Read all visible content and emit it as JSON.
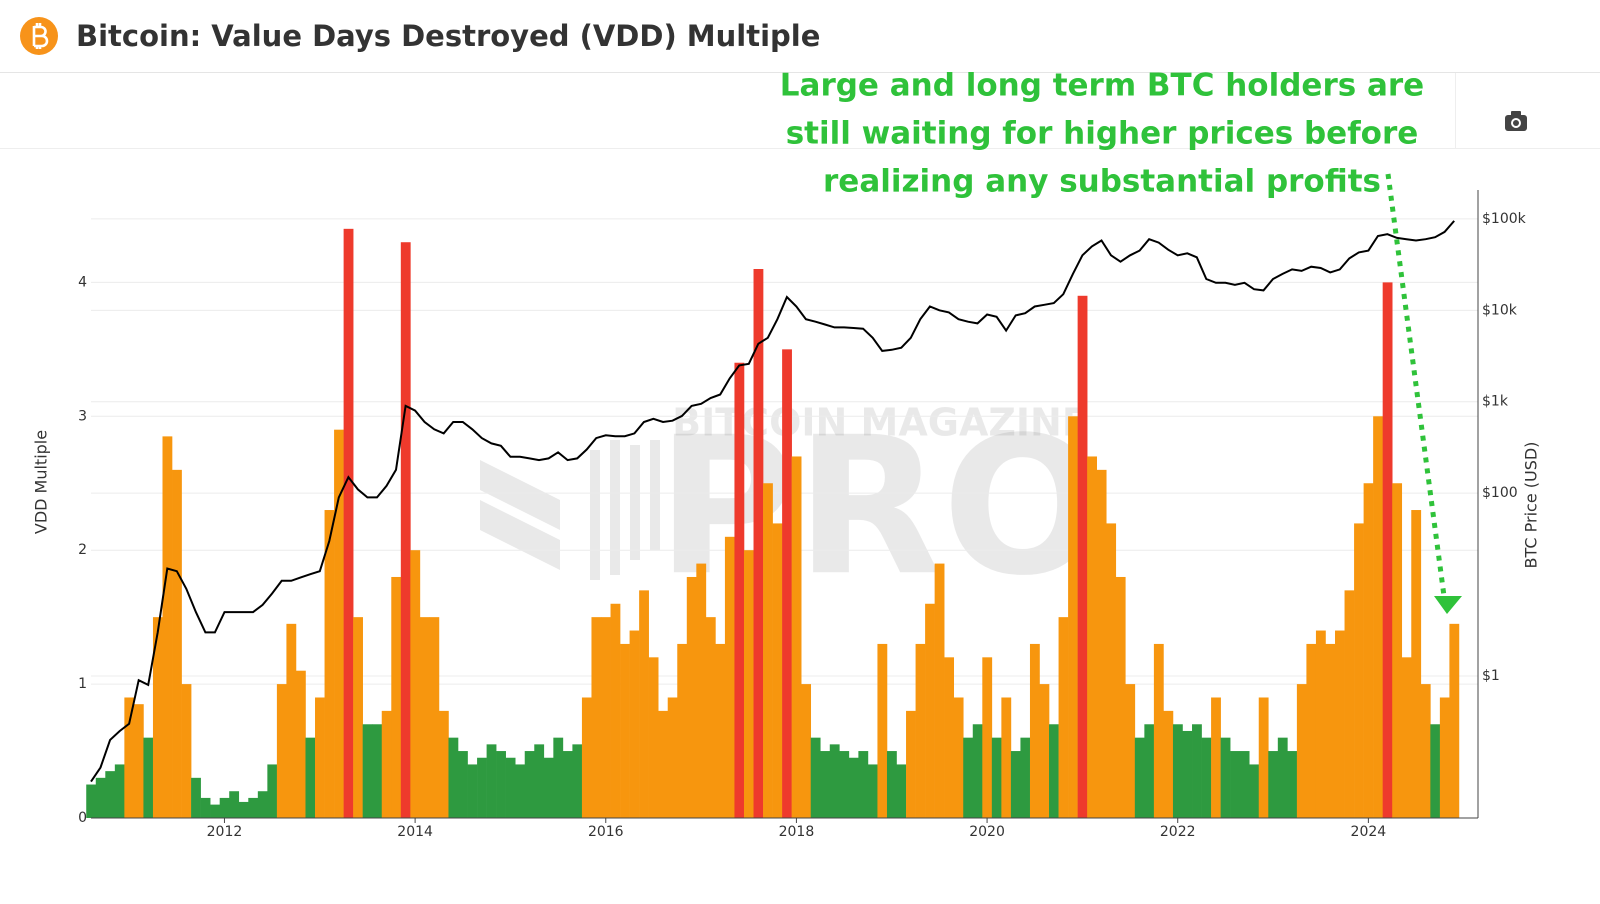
{
  "header": {
    "title": "Bitcoin: Value Days Destroyed (VDD) Multiple"
  },
  "chart_data": {
    "type": "bar-line",
    "annotation": [
      "Large and long term BTC holders are",
      "still waiting for higher prices before",
      "realizing any substantial profits"
    ],
    "watermark": [
      "BITCOIN MAGAZINE",
      "PRO"
    ],
    "ylabel": "VDD Multiple",
    "y2label": "BTC Price (USD)",
    "xlim": [
      2010.6,
      2025.15
    ],
    "xticks": [
      2012,
      2014,
      2016,
      2018,
      2020,
      2022,
      2024
    ],
    "ylim": [
      0,
      4.69
    ],
    "yticks": [
      0,
      1,
      2,
      3,
      4
    ],
    "y2lim": [
      0.028,
      207000
    ],
    "y2log": true,
    "y2ticks": [
      {
        "value": 1,
        "label": "$1"
      },
      {
        "value": 100,
        "label": "$100"
      },
      {
        "value": 1000,
        "label": "$1k"
      },
      {
        "value": 10000,
        "label": "$10k"
      },
      {
        "value": 100000,
        "label": "$100k"
      }
    ],
    "grid": true,
    "x": [
      2010.6,
      2010.7,
      2010.8,
      2010.9,
      2011.0,
      2011.1,
      2011.2,
      2011.3,
      2011.4,
      2011.5,
      2011.6,
      2011.7,
      2011.8,
      2011.9,
      2012.0,
      2012.1,
      2012.2,
      2012.3,
      2012.4,
      2012.5,
      2012.6,
      2012.7,
      2012.8,
      2012.9,
      2013.0,
      2013.1,
      2013.2,
      2013.3,
      2013.4,
      2013.5,
      2013.6,
      2013.7,
      2013.8,
      2013.9,
      2014.0,
      2014.1,
      2014.2,
      2014.3,
      2014.4,
      2014.5,
      2014.6,
      2014.7,
      2014.8,
      2014.9,
      2015.0,
      2015.1,
      2015.2,
      2015.3,
      2015.4,
      2015.5,
      2015.6,
      2015.7,
      2015.8,
      2015.9,
      2016.0,
      2016.1,
      2016.2,
      2016.3,
      2016.4,
      2016.5,
      2016.6,
      2016.7,
      2016.8,
      2016.9,
      2017.0,
      2017.1,
      2017.2,
      2017.3,
      2017.4,
      2017.5,
      2017.6,
      2017.7,
      2017.8,
      2017.9,
      2018.0,
      2018.1,
      2018.2,
      2018.3,
      2018.4,
      2018.5,
      2018.6,
      2018.7,
      2018.8,
      2018.9,
      2019.0,
      2019.1,
      2019.2,
      2019.3,
      2019.4,
      2019.5,
      2019.6,
      2019.7,
      2019.8,
      2019.9,
      2020.0,
      2020.1,
      2020.2,
      2020.3,
      2020.4,
      2020.5,
      2020.6,
      2020.7,
      2020.8,
      2020.9,
      2021.0,
      2021.1,
      2021.2,
      2021.3,
      2021.4,
      2021.5,
      2021.6,
      2021.7,
      2021.8,
      2021.9,
      2022.0,
      2022.1,
      2022.2,
      2022.3,
      2022.4,
      2022.5,
      2022.6,
      2022.7,
      2022.8,
      2022.9,
      2023.0,
      2023.1,
      2023.2,
      2023.3,
      2023.4,
      2023.5,
      2023.6,
      2023.7,
      2023.8,
      2023.9,
      2024.0,
      2024.1,
      2024.2,
      2024.3,
      2024.4,
      2024.5,
      2024.6,
      2024.7,
      2024.8,
      2024.9
    ],
    "bar_thresholds": [
      0.75,
      3.3
    ],
    "bar_colors": [
      "#2e9a40",
      "#f7960e",
      "#ee3a2c"
    ],
    "series": [
      {
        "axis": "y",
        "values": [
          0.25,
          0.3,
          0.35,
          0.4,
          0.9,
          0.85,
          0.6,
          1.5,
          2.85,
          2.6,
          1.0,
          0.3,
          0.15,
          0.1,
          0.15,
          0.2,
          0.12,
          0.15,
          0.2,
          0.4,
          1.0,
          1.45,
          1.1,
          0.6,
          0.9,
          2.3,
          2.9,
          4.4,
          1.5,
          0.7,
          0.7,
          0.8,
          1.8,
          4.3,
          2.0,
          1.5,
          1.5,
          0.8,
          0.6,
          0.5,
          0.4,
          0.45,
          0.55,
          0.5,
          0.45,
          0.4,
          0.5,
          0.55,
          0.45,
          0.6,
          0.5,
          0.55,
          0.9,
          1.5,
          1.5,
          1.6,
          1.3,
          1.4,
          1.7,
          1.2,
          0.8,
          0.9,
          1.3,
          1.8,
          1.9,
          1.5,
          1.3,
          2.1,
          3.4,
          2.0,
          4.1,
          2.5,
          2.2,
          3.5,
          2.7,
          1.0,
          0.6,
          0.5,
          0.55,
          0.5,
          0.45,
          0.5,
          0.4,
          1.3,
          0.5,
          0.4,
          0.8,
          1.3,
          1.6,
          1.9,
          1.2,
          0.9,
          0.6,
          0.7,
          1.2,
          0.6,
          0.9,
          0.5,
          0.6,
          1.3,
          1.0,
          0.7,
          1.5,
          3.0,
          3.9,
          2.7,
          2.6,
          2.2,
          1.8,
          1.0,
          0.6,
          0.7,
          1.3,
          0.8,
          0.7,
          0.65,
          0.7,
          0.6,
          0.9,
          0.6,
          0.5,
          0.5,
          0.4,
          0.9,
          0.5,
          0.6,
          0.5,
          1.0,
          1.3,
          1.4,
          1.3,
          1.4,
          1.7,
          2.2,
          2.5,
          3.0,
          4.0,
          2.5,
          1.2,
          2.3,
          1.0,
          0.7,
          0.9,
          1.45
        ]
      },
      {
        "axis": "y2",
        "color": "#000000",
        "values": [
          0.07,
          0.1,
          0.2,
          0.25,
          0.3,
          0.9,
          0.8,
          3,
          15,
          14,
          9,
          5,
          3,
          3,
          5,
          5,
          5,
          5,
          6,
          8,
          11,
          11,
          12,
          13,
          14,
          30,
          90,
          150,
          110,
          90,
          90,
          120,
          180,
          900,
          800,
          600,
          500,
          450,
          600,
          600,
          500,
          400,
          350,
          330,
          250,
          250,
          240,
          230,
          240,
          280,
          230,
          240,
          300,
          400,
          430,
          420,
          420,
          450,
          600,
          650,
          600,
          620,
          700,
          900,
          950,
          1100,
          1200,
          1800,
          2500,
          2600,
          4300,
          5000,
          8000,
          14000,
          11000,
          8000,
          7500,
          7000,
          6500,
          6500,
          6400,
          6300,
          5000,
          3600,
          3700,
          3900,
          5000,
          8000,
          11000,
          10000,
          9500,
          8000,
          7500,
          7200,
          9000,
          8500,
          6000,
          8800,
          9300,
          11000,
          11500,
          12000,
          15000,
          25000,
          40000,
          50000,
          58000,
          40000,
          34000,
          40000,
          45000,
          60000,
          55000,
          46000,
          40000,
          42000,
          38000,
          22000,
          20000,
          20000,
          19000,
          20000,
          17000,
          16500,
          22000,
          25000,
          28000,
          27000,
          30000,
          29000,
          26000,
          28000,
          37000,
          43000,
          45000,
          65000,
          68000,
          62000,
          60000,
          58000,
          60000,
          63000,
          72000,
          95000
        ]
      }
    ]
  }
}
